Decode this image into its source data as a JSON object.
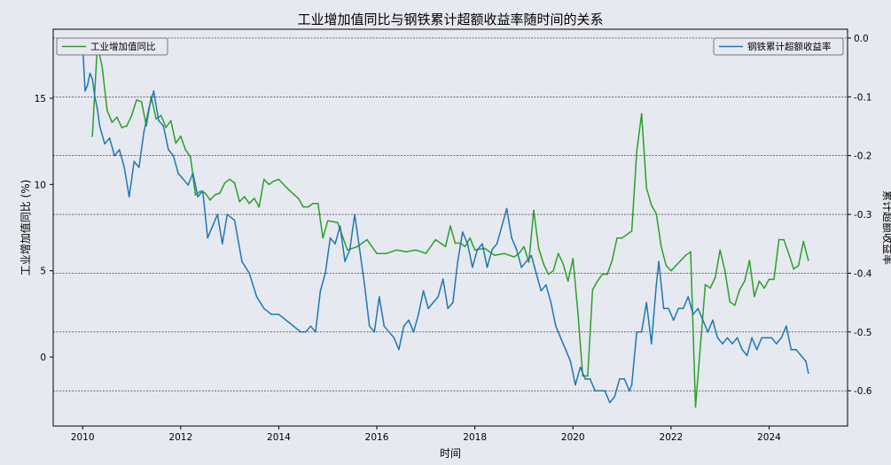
{
  "chart_data": {
    "type": "line",
    "title": "工业增加值同比与钢铁累计超额收益率随时间的关系",
    "xlabel": "时间",
    "ylabel_left": "工业增加值同比 (%)",
    "ylabel_right": "累计超额收益率",
    "xlim": [
      2009.4,
      2025.6
    ],
    "ylim_left": [
      -4.0,
      19.0
    ],
    "ylim_right": [
      -0.66,
      0.015
    ],
    "x_ticks": [
      2010,
      2012,
      2014,
      2016,
      2018,
      2020,
      2022,
      2024
    ],
    "y_left_ticks": [
      0,
      5,
      10,
      15
    ],
    "y_right_ticks": [
      0.0,
      -0.1,
      -0.2,
      -0.3,
      -0.4,
      -0.5,
      -0.6
    ],
    "y_right_tick_labels": [
      "0.0",
      "-0.1",
      "-0.2",
      "-0.3",
      "-0.4",
      "-0.5",
      "-0.6"
    ],
    "grid": "horizontal dotted lines at right-axis ticks",
    "legends": {
      "left": {
        "position": "top-left",
        "entries": [
          "工业增加值同比"
        ]
      },
      "right": {
        "position": "top-right",
        "entries": [
          "钢铁累计超额收益率"
        ]
      }
    },
    "colors": {
      "green": "#2ca02c",
      "blue": "#1f77b4",
      "background": "#e6e9ef"
    },
    "series": [
      {
        "name": "工业增加值同比",
        "axis": "left",
        "color": "#2ca02c",
        "x": [
          2010.2,
          2010.3,
          2010.4,
          2010.5,
          2010.6,
          2010.7,
          2010.8,
          2010.9,
          2011.0,
          2011.1,
          2011.2,
          2011.3,
          2011.4,
          2011.5,
          2011.6,
          2011.7,
          2011.8,
          2011.9,
          2012.0,
          2012.1,
          2012.2,
          2012.3,
          2012.4,
          2012.5,
          2012.6,
          2012.7,
          2012.8,
          2012.9,
          2013.0,
          2013.1,
          2013.2,
          2013.3,
          2013.4,
          2013.5,
          2013.6,
          2013.7,
          2013.8,
          2013.9,
          2014.0,
          2014.2,
          2014.4,
          2014.5,
          2014.6,
          2014.7,
          2014.8,
          2014.9,
          2015.0,
          2015.2,
          2015.4,
          2015.6,
          2015.8,
          2016.0,
          2016.2,
          2016.4,
          2016.6,
          2016.8,
          2017.0,
          2017.2,
          2017.4,
          2017.5,
          2017.6,
          2017.7,
          2017.8,
          2017.9,
          2018.0,
          2018.2,
          2018.4,
          2018.6,
          2018.8,
          2018.9,
          2019.0,
          2019.1,
          2019.2,
          2019.3,
          2019.4,
          2019.5,
          2019.6,
          2019.7,
          2019.8,
          2019.9,
          2020.0,
          2020.1,
          2020.2,
          2020.3,
          2020.4,
          2020.5,
          2020.6,
          2020.7,
          2020.8,
          2020.9,
          2021.0,
          2021.1,
          2021.2,
          2021.3,
          2021.4,
          2021.5,
          2021.6,
          2021.7,
          2021.8,
          2021.9,
          2022.0,
          2022.1,
          2022.2,
          2022.3,
          2022.4,
          2022.5,
          2022.6,
          2022.7,
          2022.8,
          2022.9,
          2023.0,
          2023.1,
          2023.2,
          2023.3,
          2023.4,
          2023.5,
          2023.6,
          2023.7,
          2023.8,
          2023.9,
          2024.0,
          2024.1,
          2024.2,
          2024.3,
          2024.4,
          2024.5,
          2024.6,
          2024.7,
          2024.8
        ],
        "y": [
          12.8,
          18.1,
          16.8,
          14.3,
          13.6,
          13.9,
          13.3,
          13.4,
          14.0,
          14.9,
          14.8,
          13.4,
          15.1,
          13.8,
          14.0,
          13.3,
          13.7,
          12.4,
          12.8,
          12.0,
          11.6,
          9.4,
          9.6,
          9.5,
          9.1,
          9.4,
          9.5,
          10.1,
          10.3,
          10.1,
          9.0,
          9.3,
          8.9,
          9.2,
          8.7,
          10.3,
          10.0,
          10.2,
          10.3,
          9.7,
          9.2,
          8.7,
          8.7,
          8.9,
          8.9,
          6.9,
          7.9,
          7.8,
          6.2,
          6.4,
          6.8,
          6.0,
          6.0,
          6.2,
          6.1,
          6.2,
          6.0,
          6.8,
          6.4,
          7.6,
          6.6,
          6.6,
          6.4,
          6.9,
          6.2,
          6.3,
          5.9,
          6.0,
          5.8,
          6.0,
          6.4,
          5.5,
          8.5,
          6.3,
          5.4,
          4.8,
          5.0,
          6.0,
          5.4,
          4.4,
          5.7,
          2.6,
          -1.1,
          -1.1,
          3.9,
          4.4,
          4.8,
          4.8,
          5.6,
          6.9,
          6.9,
          7.1,
          7.3,
          11.9,
          14.1,
          9.8,
          8.8,
          8.3,
          6.4,
          5.3,
          5.0,
          5.3,
          5.6,
          5.9,
          6.1,
          -2.9,
          0.7,
          4.2,
          4.0,
          4.6,
          6.2,
          5.0,
          3.2,
          3.0,
          3.9,
          4.4,
          5.6,
          3.5,
          4.4,
          4.0,
          4.5,
          4.5,
          6.8,
          6.8,
          6.0,
          5.1,
          5.3,
          6.7,
          5.6
        ]
      },
      {
        "name": "钢铁累计超额收益率",
        "axis": "right",
        "color": "#1f77b4",
        "x": [
          2010.0,
          2010.05,
          2010.1,
          2010.15,
          2010.2,
          2010.25,
          2010.3,
          2010.35,
          2010.45,
          2010.55,
          2010.65,
          2010.75,
          2010.85,
          2010.95,
          2011.05,
          2011.15,
          2011.25,
          2011.35,
          2011.45,
          2011.55,
          2011.65,
          2011.75,
          2011.85,
          2011.95,
          2012.05,
          2012.15,
          2012.25,
          2012.35,
          2012.45,
          2012.55,
          2012.65,
          2012.75,
          2012.85,
          2012.95,
          2013.1,
          2013.25,
          2013.4,
          2013.55,
          2013.7,
          2013.85,
          2014.0,
          2014.15,
          2014.3,
          2014.45,
          2014.55,
          2014.65,
          2014.75,
          2014.85,
          2014.95,
          2015.05,
          2015.15,
          2015.25,
          2015.35,
          2015.45,
          2015.55,
          2015.65,
          2015.75,
          2015.85,
          2015.95,
          2016.05,
          2016.15,
          2016.25,
          2016.35,
          2016.45,
          2016.55,
          2016.65,
          2016.75,
          2016.85,
          2016.95,
          2017.05,
          2017.15,
          2017.25,
          2017.35,
          2017.45,
          2017.55,
          2017.65,
          2017.75,
          2017.85,
          2017.95,
          2018.05,
          2018.15,
          2018.25,
          2018.35,
          2018.45,
          2018.55,
          2018.65,
          2018.75,
          2018.85,
          2018.95,
          2019.05,
          2019.15,
          2019.25,
          2019.35,
          2019.45,
          2019.55,
          2019.65,
          2019.75,
          2019.85,
          2019.95,
          2020.05,
          2020.15,
          2020.25,
          2020.35,
          2020.45,
          2020.55,
          2020.65,
          2020.75,
          2020.85,
          2020.95,
          2021.05,
          2021.15,
          2021.2,
          2021.3,
          2021.4,
          2021.5,
          2021.6,
          2021.7,
          2021.75,
          2021.85,
          2021.95,
          2022.05,
          2022.15,
          2022.25,
          2022.35,
          2022.45,
          2022.55,
          2022.65,
          2022.75,
          2022.85,
          2022.95,
          2023.05,
          2023.15,
          2023.25,
          2023.35,
          2023.45,
          2023.55,
          2023.65,
          2023.75,
          2023.85,
          2023.95,
          2024.05,
          2024.15,
          2024.25,
          2024.35,
          2024.45,
          2024.55,
          2024.65,
          2024.75,
          2024.8
        ],
        "y": [
          -0.01,
          -0.09,
          -0.08,
          -0.06,
          -0.07,
          -0.1,
          -0.12,
          -0.15,
          -0.18,
          -0.17,
          -0.2,
          -0.19,
          -0.22,
          -0.27,
          -0.21,
          -0.22,
          -0.16,
          -0.12,
          -0.09,
          -0.14,
          -0.15,
          -0.19,
          -0.2,
          -0.23,
          -0.24,
          -0.25,
          -0.23,
          -0.27,
          -0.26,
          -0.34,
          -0.32,
          -0.3,
          -0.35,
          -0.3,
          -0.31,
          -0.38,
          -0.4,
          -0.44,
          -0.46,
          -0.47,
          -0.47,
          -0.48,
          -0.49,
          -0.5,
          -0.5,
          -0.49,
          -0.5,
          -0.43,
          -0.4,
          -0.34,
          -0.35,
          -0.32,
          -0.38,
          -0.36,
          -0.3,
          -0.36,
          -0.42,
          -0.49,
          -0.5,
          -0.44,
          -0.49,
          -0.5,
          -0.51,
          -0.53,
          -0.49,
          -0.48,
          -0.5,
          -0.47,
          -0.43,
          -0.46,
          -0.45,
          -0.44,
          -0.41,
          -0.46,
          -0.45,
          -0.38,
          -0.33,
          -0.35,
          -0.39,
          -0.36,
          -0.35,
          -0.39,
          -0.36,
          -0.35,
          -0.32,
          -0.29,
          -0.34,
          -0.36,
          -0.39,
          -0.38,
          -0.37,
          -0.4,
          -0.43,
          -0.42,
          -0.45,
          -0.49,
          -0.51,
          -0.53,
          -0.55,
          -0.59,
          -0.56,
          -0.58,
          -0.58,
          -0.6,
          -0.6,
          -0.6,
          -0.62,
          -0.61,
          -0.58,
          -0.58,
          -0.6,
          -0.59,
          -0.5,
          -0.5,
          -0.45,
          -0.52,
          -0.42,
          -0.38,
          -0.46,
          -0.46,
          -0.48,
          -0.46,
          -0.46,
          -0.44,
          -0.47,
          -0.46,
          -0.48,
          -0.5,
          -0.48,
          -0.51,
          -0.52,
          -0.51,
          -0.52,
          -0.51,
          -0.53,
          -0.54,
          -0.51,
          -0.53,
          -0.51,
          -0.51,
          -0.51,
          -0.52,
          -0.51,
          -0.49,
          -0.53,
          -0.53,
          -0.54,
          -0.55,
          -0.57
        ]
      }
    ]
  }
}
